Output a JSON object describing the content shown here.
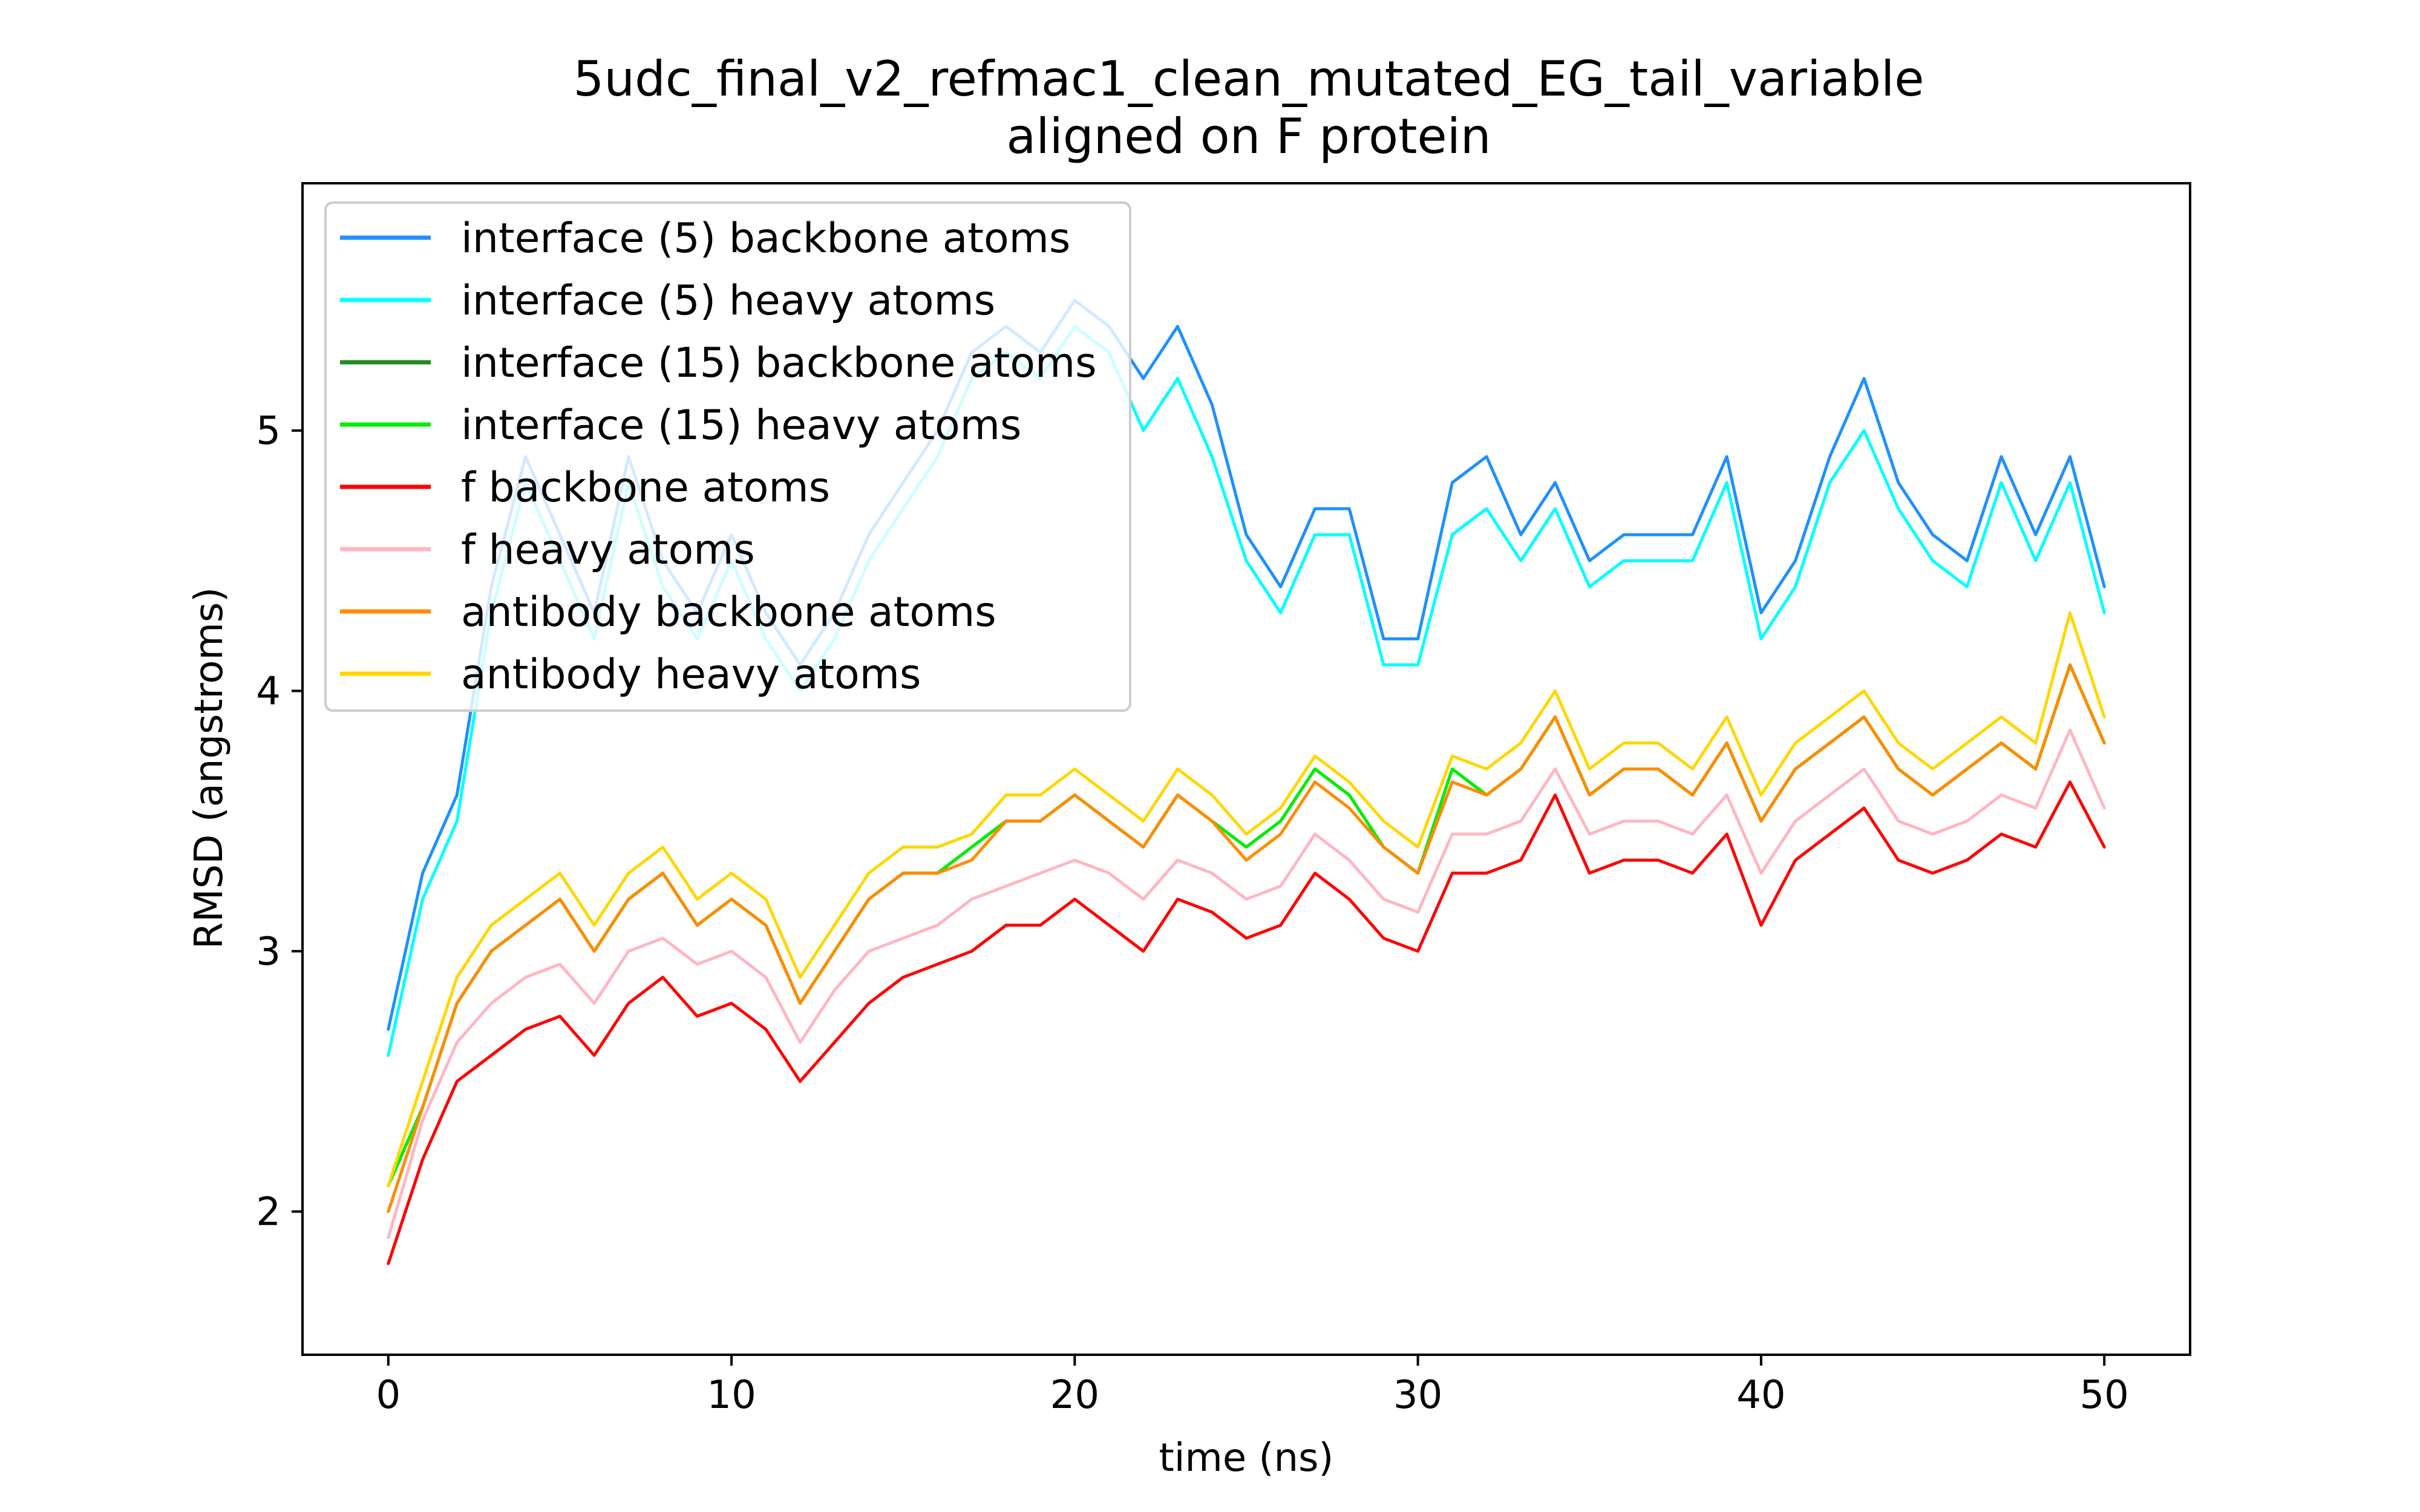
{
  "chart_data": {
    "type": "line",
    "title": "5udc_final_v2_refmac1_clean_mutated_EG_tail_variable",
    "subtitle": "aligned on F protein",
    "xlabel": "time (ns)",
    "ylabel": "RMSD (angstroms)",
    "xlim": [
      -2.5,
      52.5
    ],
    "ylim": [
      1.45,
      5.95
    ],
    "xticks": [
      0,
      10,
      20,
      30,
      40,
      50
    ],
    "yticks": [
      2,
      3,
      4,
      5
    ],
    "grid": false,
    "legend_position": "upper-left",
    "series": [
      {
        "name": "interface (5) backbone atoms",
        "color": "#1E90FF",
        "x": [
          0,
          1,
          2,
          3,
          4,
          5,
          6,
          7,
          8,
          9,
          10,
          11,
          12,
          13,
          14,
          15,
          16,
          17,
          18,
          19,
          20,
          21,
          22,
          23,
          24,
          25,
          26,
          27,
          28,
          29,
          30,
          31,
          32,
          33,
          34,
          35,
          36,
          37,
          38,
          39,
          40,
          41,
          42,
          43,
          44,
          45,
          46,
          47,
          48,
          49,
          50
        ],
        "y": [
          2.7,
          3.3,
          3.6,
          4.4,
          4.9,
          4.6,
          4.3,
          4.9,
          4.5,
          4.3,
          4.6,
          4.3,
          4.1,
          4.3,
          4.6,
          4.8,
          5.0,
          5.3,
          5.4,
          5.3,
          5.5,
          5.4,
          5.2,
          5.4,
          5.1,
          4.6,
          4.4,
          4.7,
          4.7,
          4.2,
          4.2,
          4.8,
          4.9,
          4.6,
          4.8,
          4.5,
          4.6,
          4.6,
          4.6,
          4.9,
          4.3,
          4.5,
          4.9,
          5.2,
          4.8,
          4.6,
          4.5,
          4.9,
          4.6,
          4.9,
          4.4
        ]
      },
      {
        "name": "interface (5) heavy atoms",
        "color": "#00FFFF",
        "x": [
          0,
          1,
          2,
          3,
          4,
          5,
          6,
          7,
          8,
          9,
          10,
          11,
          12,
          13,
          14,
          15,
          16,
          17,
          18,
          19,
          20,
          21,
          22,
          23,
          24,
          25,
          26,
          27,
          28,
          29,
          30,
          31,
          32,
          33,
          34,
          35,
          36,
          37,
          38,
          39,
          40,
          41,
          42,
          43,
          44,
          45,
          46,
          47,
          48,
          49,
          50
        ],
        "y": [
          2.6,
          3.2,
          3.5,
          4.3,
          4.8,
          4.5,
          4.2,
          4.8,
          4.4,
          4.2,
          4.5,
          4.2,
          4.0,
          4.2,
          4.5,
          4.7,
          4.9,
          5.2,
          5.3,
          5.2,
          5.4,
          5.3,
          5.0,
          5.2,
          4.9,
          4.5,
          4.3,
          4.6,
          4.6,
          4.1,
          4.1,
          4.6,
          4.7,
          4.5,
          4.7,
          4.4,
          4.5,
          4.5,
          4.5,
          4.8,
          4.2,
          4.4,
          4.8,
          5.0,
          4.7,
          4.5,
          4.4,
          4.8,
          4.5,
          4.8,
          4.3
        ]
      },
      {
        "name": "interface (15) backbone atoms",
        "color": "#228B22",
        "x": [
          0,
          1,
          2,
          3,
          4,
          5,
          6,
          7,
          8,
          9,
          10,
          11,
          12,
          13,
          14,
          15,
          16,
          17,
          18,
          19,
          20,
          21,
          22,
          23,
          24,
          25,
          26,
          27,
          28,
          29,
          30,
          31,
          32,
          33,
          34,
          35,
          36,
          37,
          38,
          39,
          40,
          41,
          42,
          43,
          44,
          45,
          46,
          47,
          48,
          49,
          50
        ],
        "y": [
          2.1,
          2.4,
          2.8,
          3.0,
          3.1,
          3.2,
          3.0,
          3.2,
          3.3,
          3.1,
          3.2,
          3.1,
          2.8,
          3.0,
          3.2,
          3.3,
          3.3,
          3.4,
          3.5,
          3.5,
          3.6,
          3.5,
          3.4,
          3.6,
          3.5,
          3.4,
          3.5,
          3.7,
          3.6,
          3.4,
          3.3,
          3.7,
          3.6,
          3.7,
          3.9,
          3.6,
          3.7,
          3.7,
          3.6,
          3.8,
          3.5,
          3.7,
          3.8,
          3.9,
          3.7,
          3.6,
          3.7,
          3.8,
          3.7,
          4.1,
          3.8
        ]
      },
      {
        "name": "interface (15) heavy atoms",
        "color": "#00EE00",
        "x": [
          0,
          1,
          2,
          3,
          4,
          5,
          6,
          7,
          8,
          9,
          10,
          11,
          12,
          13,
          14,
          15,
          16,
          17,
          18,
          19,
          20,
          21,
          22,
          23,
          24,
          25,
          26,
          27,
          28,
          29,
          30,
          31,
          32,
          33,
          34,
          35,
          36,
          37,
          38,
          39,
          40,
          41,
          42,
          43,
          44,
          45,
          46,
          47,
          48,
          49,
          50
        ],
        "y": [
          2.1,
          2.4,
          2.8,
          3.0,
          3.1,
          3.2,
          3.0,
          3.2,
          3.3,
          3.1,
          3.2,
          3.1,
          2.8,
          3.0,
          3.2,
          3.3,
          3.3,
          3.4,
          3.5,
          3.5,
          3.6,
          3.5,
          3.4,
          3.6,
          3.5,
          3.4,
          3.5,
          3.7,
          3.6,
          3.4,
          3.3,
          3.7,
          3.6,
          3.7,
          3.9,
          3.6,
          3.7,
          3.7,
          3.6,
          3.8,
          3.5,
          3.7,
          3.8,
          3.9,
          3.7,
          3.6,
          3.7,
          3.8,
          3.7,
          4.1,
          3.8
        ]
      },
      {
        "name": "f backbone atoms",
        "color": "#FF0000",
        "x": [
          0,
          1,
          2,
          3,
          4,
          5,
          6,
          7,
          8,
          9,
          10,
          11,
          12,
          13,
          14,
          15,
          16,
          17,
          18,
          19,
          20,
          21,
          22,
          23,
          24,
          25,
          26,
          27,
          28,
          29,
          30,
          31,
          32,
          33,
          34,
          35,
          36,
          37,
          38,
          39,
          40,
          41,
          42,
          43,
          44,
          45,
          46,
          47,
          48,
          49,
          50
        ],
        "y": [
          1.8,
          2.2,
          2.5,
          2.6,
          2.7,
          2.75,
          2.6,
          2.8,
          2.9,
          2.75,
          2.8,
          2.7,
          2.5,
          2.65,
          2.8,
          2.9,
          2.95,
          3.0,
          3.1,
          3.1,
          3.2,
          3.1,
          3.0,
          3.2,
          3.15,
          3.05,
          3.1,
          3.3,
          3.2,
          3.05,
          3.0,
          3.3,
          3.3,
          3.35,
          3.6,
          3.3,
          3.35,
          3.35,
          3.3,
          3.45,
          3.1,
          3.35,
          3.45,
          3.55,
          3.35,
          3.3,
          3.35,
          3.45,
          3.4,
          3.65,
          3.4
        ]
      },
      {
        "name": "f heavy atoms",
        "color": "#FFB6C1",
        "x": [
          0,
          1,
          2,
          3,
          4,
          5,
          6,
          7,
          8,
          9,
          10,
          11,
          12,
          13,
          14,
          15,
          16,
          17,
          18,
          19,
          20,
          21,
          22,
          23,
          24,
          25,
          26,
          27,
          28,
          29,
          30,
          31,
          32,
          33,
          34,
          35,
          36,
          37,
          38,
          39,
          40,
          41,
          42,
          43,
          44,
          45,
          46,
          47,
          48,
          49,
          50
        ],
        "y": [
          1.9,
          2.35,
          2.65,
          2.8,
          2.9,
          2.95,
          2.8,
          3.0,
          3.05,
          2.95,
          3.0,
          2.9,
          2.65,
          2.85,
          3.0,
          3.05,
          3.1,
          3.2,
          3.25,
          3.3,
          3.35,
          3.3,
          3.2,
          3.35,
          3.3,
          3.2,
          3.25,
          3.45,
          3.35,
          3.2,
          3.15,
          3.45,
          3.45,
          3.5,
          3.7,
          3.45,
          3.5,
          3.5,
          3.45,
          3.6,
          3.3,
          3.5,
          3.6,
          3.7,
          3.5,
          3.45,
          3.5,
          3.6,
          3.55,
          3.85,
          3.55
        ]
      },
      {
        "name": "antibody backbone atoms",
        "color": "#FF8C00",
        "x": [
          0,
          1,
          2,
          3,
          4,
          5,
          6,
          7,
          8,
          9,
          10,
          11,
          12,
          13,
          14,
          15,
          16,
          17,
          18,
          19,
          20,
          21,
          22,
          23,
          24,
          25,
          26,
          27,
          28,
          29,
          30,
          31,
          32,
          33,
          34,
          35,
          36,
          37,
          38,
          39,
          40,
          41,
          42,
          43,
          44,
          45,
          46,
          47,
          48,
          49,
          50
        ],
        "y": [
          2.0,
          2.4,
          2.8,
          3.0,
          3.1,
          3.2,
          3.0,
          3.2,
          3.3,
          3.1,
          3.2,
          3.1,
          2.8,
          3.0,
          3.2,
          3.3,
          3.3,
          3.35,
          3.5,
          3.5,
          3.6,
          3.5,
          3.4,
          3.6,
          3.5,
          3.35,
          3.45,
          3.65,
          3.55,
          3.4,
          3.3,
          3.65,
          3.6,
          3.7,
          3.9,
          3.6,
          3.7,
          3.7,
          3.6,
          3.8,
          3.5,
          3.7,
          3.8,
          3.9,
          3.7,
          3.6,
          3.7,
          3.8,
          3.7,
          4.1,
          3.8
        ]
      },
      {
        "name": "antibody heavy atoms",
        "color": "#FFD700",
        "x": [
          0,
          1,
          2,
          3,
          4,
          5,
          6,
          7,
          8,
          9,
          10,
          11,
          12,
          13,
          14,
          15,
          16,
          17,
          18,
          19,
          20,
          21,
          22,
          23,
          24,
          25,
          26,
          27,
          28,
          29,
          30,
          31,
          32,
          33,
          34,
          35,
          36,
          37,
          38,
          39,
          40,
          41,
          42,
          43,
          44,
          45,
          46,
          47,
          48,
          49,
          50
        ],
        "y": [
          2.1,
          2.5,
          2.9,
          3.1,
          3.2,
          3.3,
          3.1,
          3.3,
          3.4,
          3.2,
          3.3,
          3.2,
          2.9,
          3.1,
          3.3,
          3.4,
          3.4,
          3.45,
          3.6,
          3.6,
          3.7,
          3.6,
          3.5,
          3.7,
          3.6,
          3.45,
          3.55,
          3.75,
          3.65,
          3.5,
          3.4,
          3.75,
          3.7,
          3.8,
          4.0,
          3.7,
          3.8,
          3.8,
          3.7,
          3.9,
          3.6,
          3.8,
          3.9,
          4.0,
          3.8,
          3.7,
          3.8,
          3.9,
          3.8,
          4.3,
          3.9
        ]
      }
    ]
  }
}
